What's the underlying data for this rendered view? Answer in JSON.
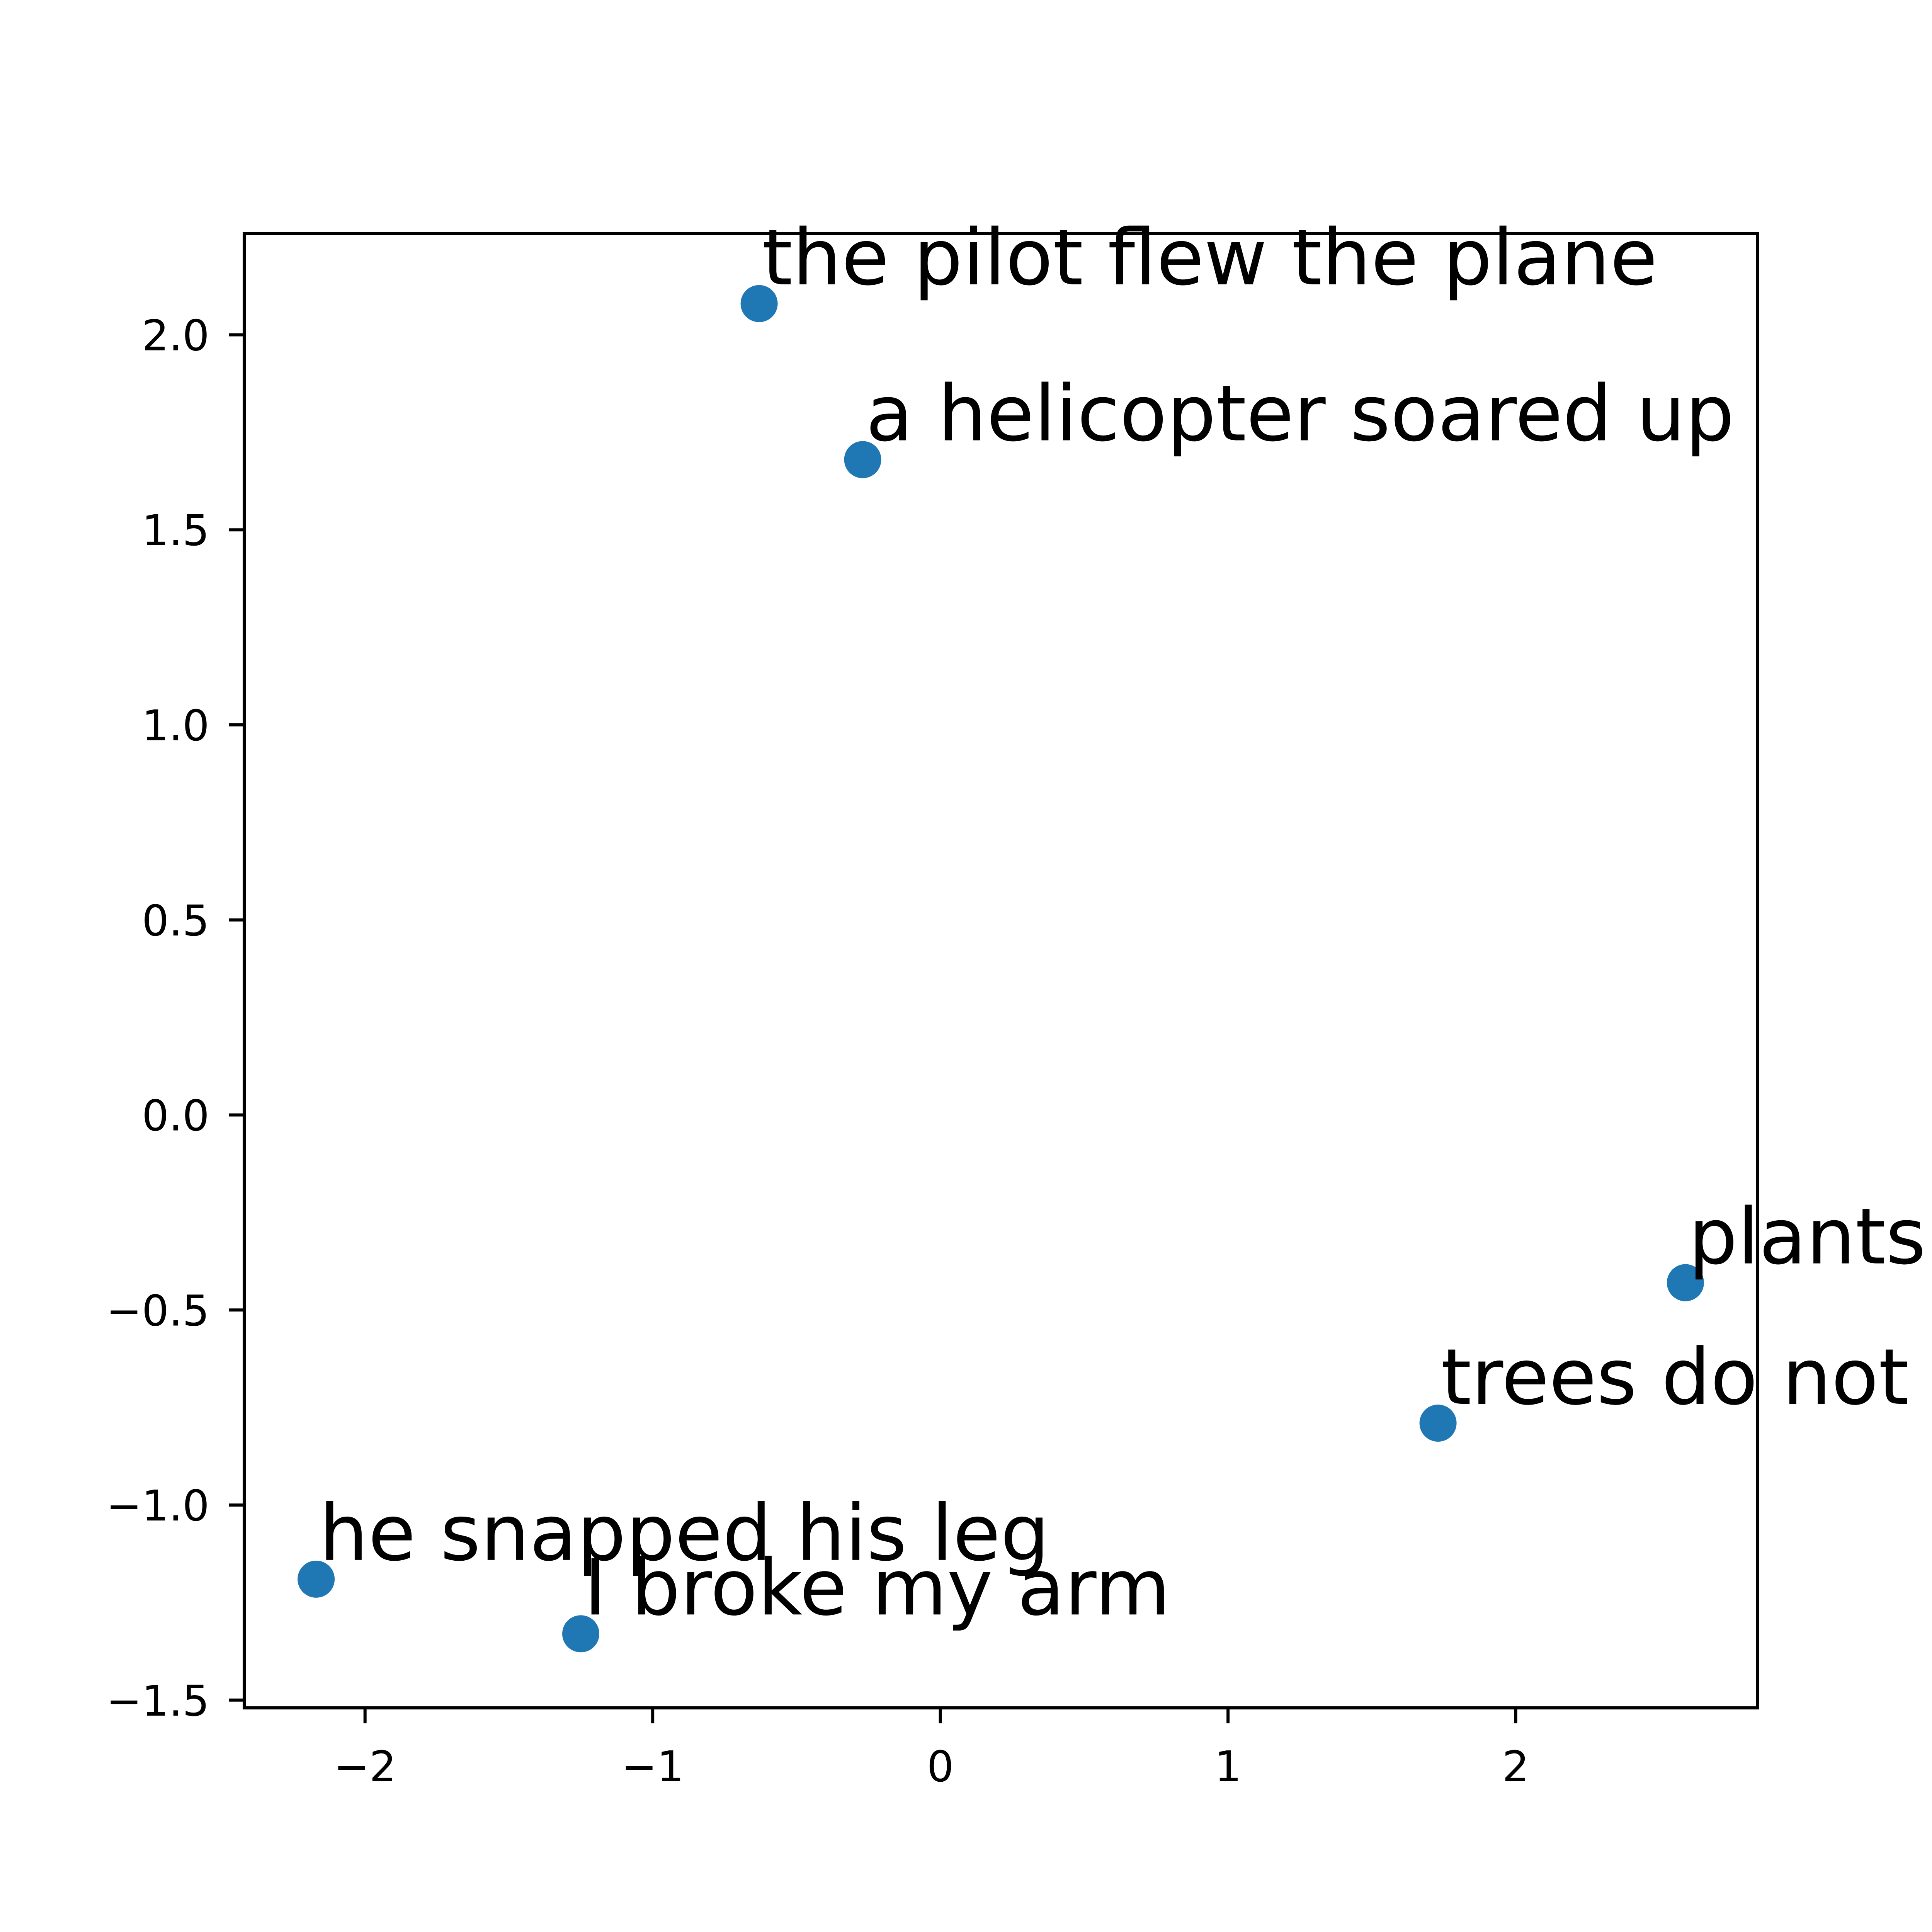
{
  "chart_data": {
    "type": "scatter",
    "title": "",
    "xlabel": "",
    "ylabel": "",
    "xlim": [
      -2.42,
      2.84
    ],
    "ylim": [
      -1.52,
      2.26
    ],
    "xticks": [
      -2,
      -1,
      0,
      1,
      2
    ],
    "yticks": [
      -1.5,
      -1.0,
      -0.5,
      0.0,
      0.5,
      1.0,
      1.5,
      2.0
    ],
    "xtick_labels": [
      "−2",
      "−1",
      "0",
      "1",
      "2"
    ],
    "ytick_labels": [
      "−1.5",
      "−1.0",
      "−0.5",
      "0.0",
      "0.5",
      "1.0",
      "1.5",
      "2.0"
    ],
    "grid": false,
    "point_color": "#1f77b4",
    "points": [
      {
        "x": -0.63,
        "y": 2.08,
        "label": "the pilot flew the plane"
      },
      {
        "x": -0.27,
        "y": 1.68,
        "label": "a helicopter soared up"
      },
      {
        "x": 2.59,
        "y": -0.43,
        "label": "plants"
      },
      {
        "x": 1.73,
        "y": -0.79,
        "label": "trees do not"
      },
      {
        "x": -2.17,
        "y": -1.19,
        "label": "he snapped his leg"
      },
      {
        "x": -1.25,
        "y": -1.33,
        "label": "I broke my arm"
      }
    ]
  }
}
